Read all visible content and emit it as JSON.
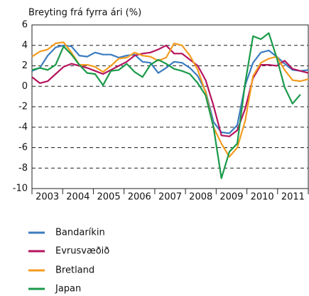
{
  "chart_data": {
    "type": "line",
    "y_label": "Breyting frá fyrra ári (%)",
    "categories": [
      null,
      "2003",
      null,
      null,
      null,
      "2004",
      null,
      null,
      null,
      "2005",
      null,
      null,
      null,
      "2006",
      null,
      null,
      null,
      "2007",
      null,
      null,
      null,
      "2008",
      null,
      null,
      null,
      "2009",
      null,
      null,
      null,
      "2010",
      null,
      null,
      null,
      "2011",
      null,
      null
    ],
    "series": [
      {
        "name": "Bandaríkin",
        "color": "#3b7cc0",
        "values": [
          1.5,
          1.8,
          3.0,
          3.8,
          4.0,
          3.9,
          3.0,
          2.9,
          3.3,
          3.1,
          3.1,
          2.8,
          3.0,
          3.1,
          2.4,
          2.3,
          1.3,
          1.8,
          2.4,
          2.3,
          1.8,
          1.0,
          -0.5,
          -3.5,
          -4.5,
          -4.6,
          -3.8,
          0.1,
          2.3,
          3.3,
          3.5,
          2.9,
          2.2,
          1.6,
          1.5,
          1.6
        ]
      },
      {
        "name": "Evrusvæðið",
        "color": "#b5135d",
        "values": [
          0.9,
          0.3,
          0.5,
          1.2,
          1.9,
          2.2,
          2.0,
          1.8,
          1.5,
          1.2,
          1.6,
          2.0,
          2.4,
          3.0,
          3.2,
          3.3,
          3.6,
          4.0,
          3.2,
          3.2,
          2.6,
          2.0,
          0.6,
          -1.9,
          -4.8,
          -4.9,
          -4.3,
          -2.2,
          0.8,
          2.1,
          2.1,
          2.0,
          2.5,
          1.7,
          1.5,
          1.3
        ]
      },
      {
        "name": "Bretland",
        "color": "#f39c1f",
        "values": [
          2.9,
          3.4,
          3.6,
          4.2,
          4.3,
          3.3,
          2.1,
          2.1,
          1.9,
          1.4,
          2.0,
          2.7,
          2.8,
          3.3,
          3.0,
          2.9,
          2.5,
          2.8,
          4.2,
          4.0,
          3.0,
          1.6,
          -0.6,
          -4.0,
          -5.6,
          -6.9,
          -6.0,
          -3.4,
          1.0,
          2.3,
          2.7,
          2.9,
          1.6,
          0.6,
          0.5,
          0.7
        ]
      },
      {
        "name": "Japan",
        "color": "#1a9a4a",
        "values": [
          1.6,
          1.8,
          1.6,
          2.1,
          3.9,
          3.1,
          2.1,
          1.3,
          1.2,
          0.1,
          1.5,
          1.6,
          2.2,
          1.4,
          0.9,
          2.1,
          2.6,
          2.2,
          1.7,
          1.5,
          1.2,
          0.3,
          -0.9,
          -4.0,
          -9.0,
          -6.4,
          -5.6,
          0.3,
          4.9,
          4.6,
          5.2,
          2.8,
          -0.1,
          -1.7,
          -0.8,
          null
        ]
      }
    ],
    "ylim": [
      -10,
      6
    ],
    "yticks": [
      -10,
      -8,
      -6,
      -4,
      -2,
      0,
      2,
      4,
      6
    ],
    "grid": true
  }
}
